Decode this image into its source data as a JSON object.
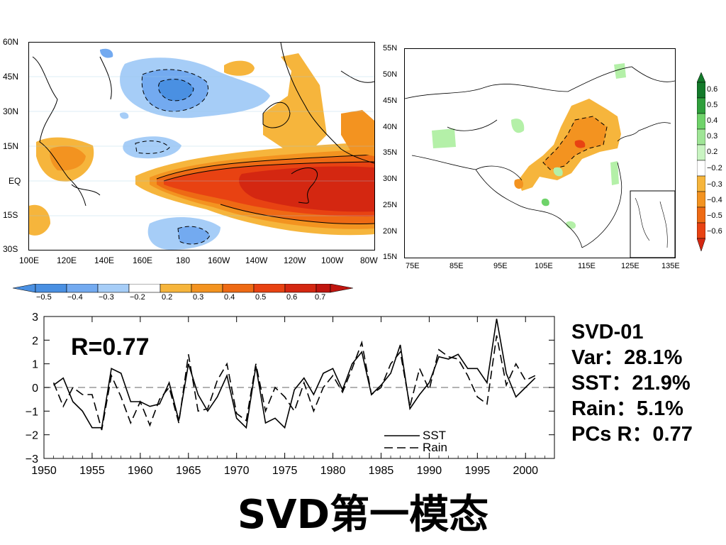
{
  "title": "SVD第一模态",
  "stats": {
    "mode": "SVD-01",
    "var": "Var：28.1%",
    "sst": "SST：21.9%",
    "rain": "Rain：5.1%",
    "pcs_r": "PCs R：0.77"
  },
  "colors": {
    "neg_strong": "#4a90e2",
    "neg_mid": "#73aaf0",
    "neg_weak": "#a6cdf7",
    "pos_1": "#f6b53c",
    "pos_2": "#f39320",
    "pos_3": "#ee6a14",
    "pos_4": "#e84212",
    "pos_5": "#d42711",
    "green_1": "#b4f0a8",
    "green_2": "#6fd36a",
    "green_3": "#2f9f3c",
    "green_4": "#137a2a"
  },
  "sst_map": {
    "y_ticks": [
      "60N",
      "45N",
      "30N",
      "15N",
      "EQ",
      "15S",
      "30S"
    ],
    "x_ticks": [
      "100E",
      "120E",
      "140E",
      "160E",
      "180",
      "160W",
      "140W",
      "120W",
      "100W",
      "80W"
    ]
  },
  "sst_colorbar": {
    "labels": [
      "−0.5",
      "−0.4",
      "−0.3",
      "−0.2",
      "0.2",
      "0.3",
      "0.4",
      "0.5",
      "0.6",
      "0.7"
    ]
  },
  "rain_map": {
    "y_ticks": [
      "55N",
      "50N",
      "45N",
      "40N",
      "35N",
      "30N",
      "25N",
      "20N",
      "15N"
    ],
    "x_ticks": [
      "75E",
      "85E",
      "95E",
      "105E",
      "115E",
      "125E",
      "135E"
    ]
  },
  "rain_colorbar": {
    "labels": [
      "0.6",
      "0.5",
      "0.4",
      "0.3",
      "0.2",
      "−0.2",
      "−0.3",
      "−0.4",
      "−0.5",
      "−0.6"
    ]
  },
  "chart_data": {
    "type": "line",
    "annotation": "R=0.77",
    "x": [
      1951,
      1952,
      1953,
      1954,
      1955,
      1956,
      1957,
      1958,
      1959,
      1960,
      1961,
      1962,
      1963,
      1964,
      1965,
      1966,
      1967,
      1968,
      1969,
      1970,
      1971,
      1972,
      1973,
      1974,
      1975,
      1976,
      1977,
      1978,
      1979,
      1980,
      1981,
      1982,
      1983,
      1984,
      1985,
      1986,
      1987,
      1988,
      1989,
      1990,
      1991,
      1992,
      1993,
      1994,
      1995,
      1996,
      1997,
      1998,
      1999,
      2000,
      2001
    ],
    "series": [
      {
        "name": "SST",
        "style": "solid",
        "values": [
          0.1,
          0.4,
          -0.6,
          -1.0,
          -1.7,
          -1.7,
          0.8,
          0.6,
          -0.6,
          -0.6,
          -0.8,
          -0.7,
          0.2,
          -1.4,
          1.0,
          -0.3,
          -1.0,
          -0.4,
          0.5,
          -1.3,
          -1.7,
          0.9,
          -1.5,
          -1.3,
          -1.7,
          -0.1,
          0.4,
          -0.3,
          0.6,
          0.8,
          -0.1,
          1.0,
          1.5,
          -0.3,
          0.1,
          0.6,
          1.8,
          -0.9,
          -0.3,
          0.2,
          1.3,
          1.2,
          1.4,
          0.8,
          0.8,
          0.2,
          2.9,
          0.6,
          -0.4,
          0.0,
          0.4
        ]
      },
      {
        "name": "Rain",
        "style": "dashed",
        "values": [
          0.2,
          -0.8,
          0.0,
          -0.3,
          -0.3,
          -1.8,
          0.5,
          -0.4,
          -1.5,
          -0.6,
          -1.6,
          -0.5,
          0.0,
          -1.5,
          1.4,
          -1.0,
          -0.9,
          0.3,
          1.0,
          -1.1,
          -1.4,
          1.0,
          -1.0,
          0.0,
          -0.4,
          -1.0,
          0.2,
          -1.0,
          0.0,
          0.5,
          -0.2,
          0.8,
          1.9,
          -0.3,
          0.0,
          1.0,
          1.5,
          -0.8,
          0.8,
          -0.1,
          1.6,
          1.3,
          1.2,
          0.5,
          -0.4,
          -0.7,
          2.2,
          0.1,
          1.0,
          0.3,
          0.5
        ]
      }
    ],
    "ylim": [
      -3,
      3
    ],
    "xlim": [
      1950,
      2003
    ],
    "y_ticks": [
      "3",
      "2",
      "1",
      "0",
      "−1",
      "−2",
      "−3"
    ],
    "x_ticks": [
      "1950",
      "1955",
      "1960",
      "1965",
      "1970",
      "1975",
      "1980",
      "1985",
      "1990",
      "1995",
      "2000"
    ],
    "zero_line": true,
    "legend_position": "bottom-right"
  }
}
